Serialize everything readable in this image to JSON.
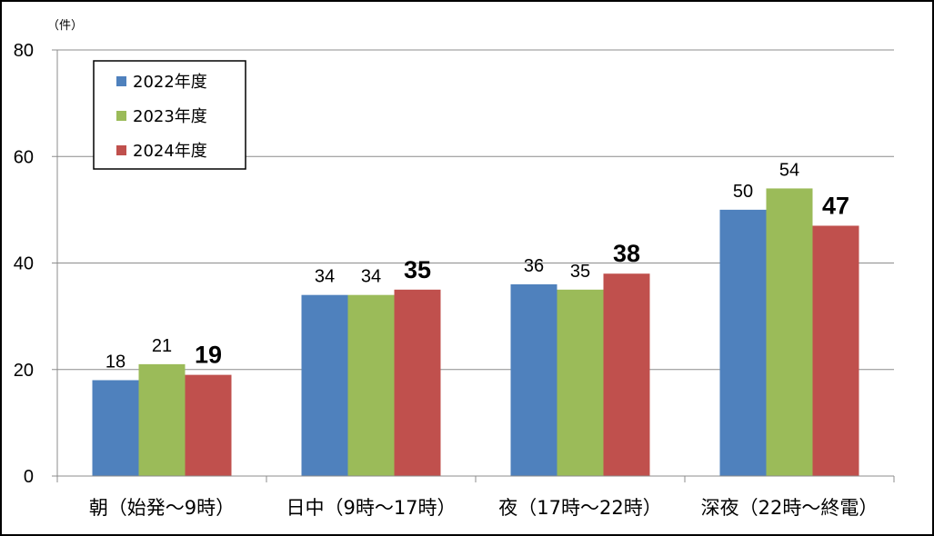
{
  "chart_data": {
    "type": "bar",
    "unit_label": "（件）",
    "categories": [
      "朝（始発～9時）",
      "日中（9時～17時）",
      "夜（17時～22時）",
      "深夜（22時～終電）"
    ],
    "series": [
      {
        "name": "2022年度",
        "color": "#4f81bd",
        "values": [
          18,
          34,
          36,
          50
        ],
        "label_bold": false
      },
      {
        "name": "2023年度",
        "color": "#9bbb59",
        "values": [
          21,
          34,
          35,
          54
        ],
        "label_bold": false
      },
      {
        "name": "2024年度",
        "color": "#c0504d",
        "values": [
          19,
          35,
          38,
          47
        ],
        "label_bold": true
      }
    ],
    "ylim": [
      0,
      80
    ],
    "yticks": [
      0,
      20,
      40,
      60,
      80
    ],
    "grid": true,
    "legend_position": "top-left"
  }
}
